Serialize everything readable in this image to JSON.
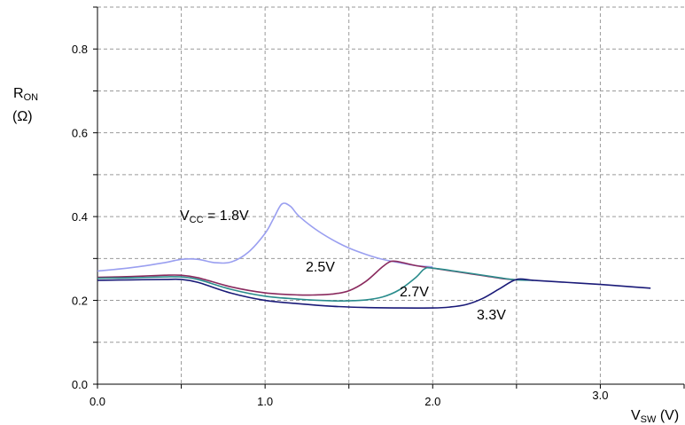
{
  "chart_data": {
    "type": "line",
    "title": "",
    "xlabel": {
      "main": "V",
      "sub": "SW",
      "unit": " (V)"
    },
    "ylabel": {
      "main": "R",
      "sub": "ON",
      "unit": "(Ω)"
    },
    "xlim": [
      0,
      3.5
    ],
    "ylim": [
      0,
      0.9
    ],
    "x_ticks": [
      0,
      1.0,
      2.0,
      3.0
    ],
    "x_tick_labels": [
      "0.0",
      "1.0",
      "2.0",
      "3.0"
    ],
    "y_ticks": [
      0,
      0.2,
      0.4,
      0.6,
      0.8
    ],
    "y_tick_labels": [
      "0.0",
      "0.2",
      "0.4",
      "0.6",
      "0.8"
    ],
    "grid": true,
    "series": [
      {
        "name": "VCC = 1.8V",
        "label_main": "V",
        "label_sub": "CC",
        "label_rest": " = 1.8V",
        "color": "#9a9ff0",
        "x": [
          0,
          0.2,
          0.4,
          0.5,
          0.6,
          0.7,
          0.8,
          0.9,
          1.0,
          1.05,
          1.1,
          1.15,
          1.2,
          1.3,
          1.4,
          1.5,
          1.6,
          1.7,
          1.8,
          1.9,
          2.0
        ],
        "y": [
          0.27,
          0.278,
          0.29,
          0.298,
          0.298,
          0.29,
          0.292,
          0.315,
          0.36,
          0.395,
          0.43,
          0.425,
          0.402,
          0.37,
          0.345,
          0.325,
          0.31,
          0.298,
          0.29,
          0.283,
          0.28
        ]
      },
      {
        "name": "2.5V",
        "label_main": "2.5V",
        "label_sub": "",
        "label_rest": "",
        "color": "#8a2a5e",
        "x": [
          0,
          0.2,
          0.4,
          0.5,
          0.6,
          0.8,
          1.0,
          1.2,
          1.3,
          1.4,
          1.5,
          1.6,
          1.7,
          1.75,
          1.8,
          1.9,
          2.0,
          2.2,
          2.4,
          2.5
        ],
        "y": [
          0.255,
          0.257,
          0.26,
          0.26,
          0.254,
          0.232,
          0.218,
          0.213,
          0.213,
          0.215,
          0.223,
          0.245,
          0.28,
          0.293,
          0.292,
          0.283,
          0.277,
          0.265,
          0.253,
          0.249
        ]
      },
      {
        "name": "2.7V",
        "label_main": "2.7V",
        "label_sub": "",
        "label_rest": "",
        "color": "#2a8c8c",
        "x": [
          0,
          0.2,
          0.4,
          0.5,
          0.6,
          0.8,
          1.0,
          1.2,
          1.4,
          1.5,
          1.6,
          1.7,
          1.8,
          1.9,
          1.95,
          2.0,
          2.2,
          2.4,
          2.5,
          2.6
        ],
        "y": [
          0.253,
          0.254,
          0.256,
          0.256,
          0.25,
          0.226,
          0.21,
          0.203,
          0.199,
          0.199,
          0.201,
          0.208,
          0.225,
          0.255,
          0.275,
          0.277,
          0.266,
          0.254,
          0.249,
          0.248
        ]
      },
      {
        "name": "3.3V",
        "label_main": "3.3V",
        "label_sub": "",
        "label_rest": "",
        "color": "#1a1a78",
        "x": [
          0,
          0.2,
          0.4,
          0.5,
          0.6,
          0.8,
          1.0,
          1.2,
          1.4,
          1.6,
          1.8,
          2.0,
          2.1,
          2.2,
          2.3,
          2.4,
          2.5,
          2.6,
          2.8,
          3.0,
          3.2,
          3.3
        ],
        "y": [
          0.248,
          0.249,
          0.25,
          0.25,
          0.243,
          0.217,
          0.2,
          0.192,
          0.186,
          0.183,
          0.182,
          0.182,
          0.184,
          0.19,
          0.205,
          0.228,
          0.25,
          0.248,
          0.243,
          0.238,
          0.232,
          0.229
        ]
      }
    ]
  }
}
